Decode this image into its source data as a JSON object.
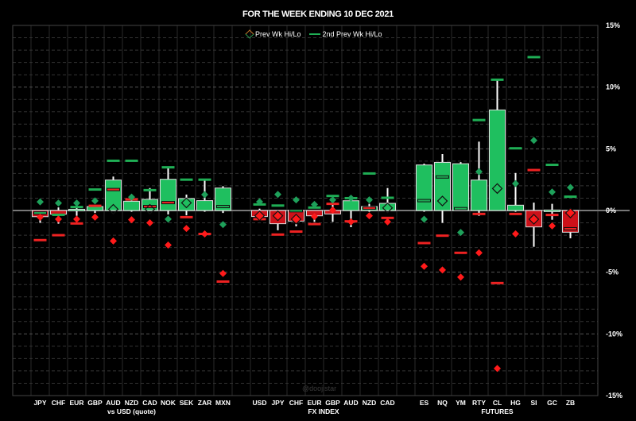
{
  "chart_data": {
    "type": "candlestick-range",
    "title": "FOR THE WEEK ENDING  10 DEC 2021",
    "legend": {
      "position": "top-center",
      "entries": [
        "Prev Wk Hi/Lo",
        "2nd Prev Wk Hi/Lo"
      ]
    },
    "watermark": "@doojistar",
    "y_axis": {
      "position": "right",
      "ylim": [
        -15,
        15
      ],
      "ticks": [
        15,
        10,
        5,
        0,
        -5,
        -10,
        -15
      ],
      "tick_labels": [
        "15%",
        "10%",
        "5%",
        "0%",
        "-5%",
        "-10%",
        "-15%"
      ],
      "grid": true
    },
    "colors": {
      "up": "#1fbf5f",
      "down": "#cc1119",
      "prev_hi": "#1ea05a",
      "prev_lo": "#ff1a1a",
      "prev2_hi": "#1fae55",
      "prev2_lo": "#ee2222",
      "background": "#000000"
    },
    "groups": [
      {
        "label": "vs USD (quote)",
        "items": [
          {
            "name": "JPY",
            "close": -0.5,
            "high": 0,
            "low": -1.0,
            "prev_hi": 0.7,
            "prev_lo": -0.55,
            "prev2_hi": -0.2,
            "prev2_lo": -2.4
          },
          {
            "name": "CHF",
            "close": -0.3,
            "high": 0.25,
            "low": -1.07,
            "prev_hi": 0.6,
            "prev_lo": -0.7,
            "prev2_hi": -0.35,
            "prev2_lo": -2.0
          },
          {
            "name": "EUR",
            "close": 0.1,
            "high": 0.5,
            "low": -0.43,
            "prev_hi": 0.6,
            "prev_lo": -0.7,
            "prev2_hi": 0.28,
            "prev2_lo": -1.05
          },
          {
            "name": "GBP",
            "close": 0.32,
            "high": 0.35,
            "low": -0.2,
            "prev_hi": 0.78,
            "prev_lo": -0.54,
            "prev2_hi": 1.7,
            "prev2_lo": 0.38
          },
          {
            "name": "AUD",
            "close": 2.47,
            "high": 2.75,
            "low": 0,
            "prev_hi": 0.1,
            "prev_lo": -2.47,
            "prev2_hi": 4.03,
            "prev2_lo": 1.7
          },
          {
            "name": "NZD",
            "close": 0.75,
            "high": 0.8,
            "low": -0.1,
            "prev_hi": 1.09,
            "prev_lo": -0.75,
            "prev2_hi": 4.03,
            "prev2_lo": 0.9
          },
          {
            "name": "CAD",
            "close": 0.9,
            "high": 1.82,
            "low": 0,
            "prev_hi": 0.1,
            "prev_lo": -1.0,
            "prev2_hi": 1.65,
            "prev2_lo": 0.32
          },
          {
            "name": "NOK",
            "close": 2.53,
            "high": 3.47,
            "low": -0.32,
            "prev_hi": -0.7,
            "prev_lo": -2.8,
            "prev2_hi": 3.5,
            "prev2_lo": 0.64
          },
          {
            "name": "SEK",
            "close": 0.97,
            "high": 1.29,
            "low": -0.39,
            "prev_hi": 0.62,
            "prev_lo": -1.46,
            "prev2_hi": 2.5,
            "prev2_lo": -0.54
          },
          {
            "name": "ZAR",
            "close": 0.8,
            "high": 2.47,
            "low": -0.1,
            "prev_hi": 1.29,
            "prev_lo": -1.9,
            "prev2_hi": 2.5,
            "prev2_lo": -1.9
          },
          {
            "name": "MXN",
            "close": 1.82,
            "high": 1.97,
            "low": -0.2,
            "prev_hi": -1.14,
            "prev_lo": -5.1,
            "prev2_hi": 0.32,
            "prev2_lo": -5.76
          }
        ]
      },
      {
        "label": "FX INDEX",
        "items": [
          {
            "name": "USD",
            "close": -0.49,
            "high": 0.15,
            "low": -0.5,
            "prev_hi": 0.71,
            "prev_lo": -0.43,
            "prev2_hi": 0.49,
            "prev2_lo": -0.7
          },
          {
            "name": "JPY",
            "close": -1.07,
            "high": 0,
            "low": -1.6,
            "prev_hi": 1.3,
            "prev_lo": -0.43,
            "prev2_hi": 0.4,
            "prev2_lo": -1.95
          },
          {
            "name": "CHF",
            "close": -0.86,
            "high": 0,
            "low": -1.28,
            "prev_hi": 0.86,
            "prev_lo": -0.7,
            "prev2_hi": -0.02,
            "prev2_lo": -1.71
          },
          {
            "name": "EUR",
            "close": -0.43,
            "high": 0,
            "low": -0.92,
            "prev_hi": 0.49,
            "prev_lo": -0.49,
            "prev2_hi": 0.24,
            "prev2_lo": -1.1
          },
          {
            "name": "GBP",
            "close": -0.28,
            "high": 0.5,
            "low": -0.92,
            "prev_hi": 0.86,
            "prev_lo": 0.04,
            "prev2_hi": 1.18,
            "prev2_lo": 0.54
          },
          {
            "name": "AUD",
            "close": 0.79,
            "high": 0.8,
            "low": -1.35,
            "prev_hi": 1.0,
            "prev_lo": -0.92,
            "prev2_hi": 1.0,
            "prev2_lo": -0.88
          },
          {
            "name": "NZD",
            "close": 0.32,
            "high": 0.54,
            "low": -0.1,
            "prev_hi": 0.86,
            "prev_lo": -0.43,
            "prev2_hi": 3.0,
            "prev2_lo": 0.2
          },
          {
            "name": "CAD",
            "close": 0.58,
            "high": 1.82,
            "low": 0,
            "prev_hi": 0.21,
            "prev_lo": -0.92,
            "prev2_hi": 1.03,
            "prev2_lo": -0.6
          }
        ]
      },
      {
        "label": "FUTURES",
        "items": [
          {
            "name": "ES",
            "close": 3.69,
            "high": 3.8,
            "low": -0.1,
            "prev_hi": -0.71,
            "prev_lo": -4.52,
            "prev2_hi": 0.8,
            "prev2_lo": -2.64
          },
          {
            "name": "NQ",
            "close": 3.9,
            "high": 4.57,
            "low": -1.0,
            "prev_hi": 0.77,
            "prev_lo": -4.82,
            "prev2_hi": 2.72,
            "prev2_lo": -2.04
          },
          {
            "name": "YM",
            "close": 3.79,
            "high": 3.92,
            "low": 0,
            "prev_hi": -1.78,
            "prev_lo": -5.4,
            "prev2_hi": 0.15,
            "prev2_lo": -3.43
          },
          {
            "name": "RTY",
            "close": 2.47,
            "high": 5.58,
            "low": -0.43,
            "prev_hi": 3.15,
            "prev_lo": -3.43,
            "prev2_hi": 7.33,
            "prev2_lo": -0.28
          },
          {
            "name": "CL",
            "close": 8.15,
            "high": 10.56,
            "low": 0,
            "prev_hi": 1.78,
            "prev_lo": -12.8,
            "prev2_hi": 10.6,
            "prev2_lo": -5.88
          },
          {
            "name": "HG",
            "close": 0.43,
            "high": 3.04,
            "low": -0.1,
            "prev_hi": 2.18,
            "prev_lo": -1.89,
            "prev2_hi": 5.04,
            "prev2_lo": -0.28
          },
          {
            "name": "SI",
            "close": -1.33,
            "high": 0.64,
            "low": -2.94,
            "prev_hi": 5.68,
            "prev_lo": -0.71,
            "prev2_hi": 12.43,
            "prev2_lo": 3.28
          },
          {
            "name": "GC",
            "close": 0.04,
            "high": 0.54,
            "low": -0.75,
            "prev_hi": 1.5,
            "prev_lo": -1.25,
            "prev2_hi": 3.7,
            "prev2_lo": -0.36
          },
          {
            "name": "ZB",
            "close": -1.76,
            "high": 0,
            "low": -2.25,
            "prev_hi": 1.87,
            "prev_lo": -0.2,
            "prev2_hi": 1.12,
            "prev2_lo": -1.48
          }
        ]
      }
    ]
  }
}
